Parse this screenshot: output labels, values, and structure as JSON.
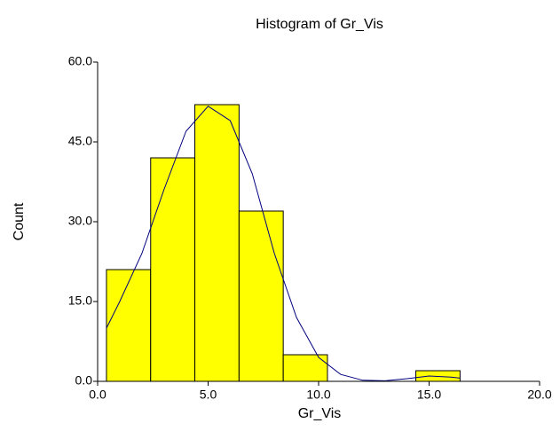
{
  "chart_data": {
    "type": "histogram",
    "title": "Histogram of Gr_Vis",
    "x_label": "Gr_Vis",
    "y_label": "Count",
    "bins": [
      0.4,
      2.4,
      4.4,
      6.4,
      8.4,
      10.4,
      12.4,
      14.4,
      16.4
    ],
    "counts": [
      21,
      42,
      52,
      32,
      5,
      0,
      0,
      2
    ],
    "color": "#ffff00",
    "curve": {
      "color": "#000080",
      "x": [
        0.4,
        1,
        2,
        3,
        4,
        5,
        6,
        7,
        8,
        9,
        10,
        11,
        12,
        13,
        14,
        15,
        16,
        16.4
      ],
      "y": [
        10,
        15,
        24,
        36,
        47,
        51.7,
        49,
        39,
        24,
        12,
        4.5,
        1.3,
        0.2,
        0.1,
        0.5,
        1.0,
        0.8,
        0.6
      ]
    },
    "xlim": [
      0,
      20
    ],
    "ylim": [
      0,
      60
    ],
    "xticks": [
      {
        "value": 0,
        "label": "0.0"
      },
      {
        "value": 5,
        "label": "5.0"
      },
      {
        "value": 10,
        "label": "10.0"
      },
      {
        "value": 15,
        "label": "15.0"
      },
      {
        "value": 20,
        "label": "20.0"
      }
    ],
    "yticks": [
      {
        "value": 0,
        "label": "0.0"
      },
      {
        "value": 15,
        "label": "15.0"
      },
      {
        "value": 30,
        "label": "30.0"
      },
      {
        "value": 45,
        "label": "45.0"
      },
      {
        "value": 60,
        "label": "60.0"
      }
    ]
  }
}
